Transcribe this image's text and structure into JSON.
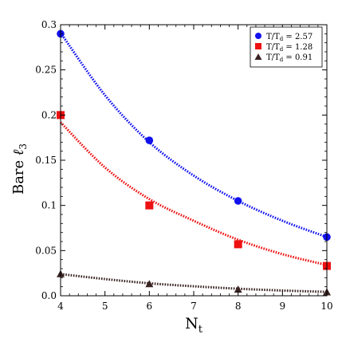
{
  "chart_data": {
    "type": "scatter",
    "title": "",
    "xlabel_main": "N",
    "xlabel_sub": "t",
    "ylabel_main": "Bare ",
    "ylabel_symbol": "ℓ",
    "ylabel_sub": "3",
    "xlim": [
      4,
      10
    ],
    "ylim": [
      0,
      0.3
    ],
    "x_ticks": [
      "4",
      "5",
      "6",
      "7",
      "8",
      "9",
      "10"
    ],
    "y_ticks": [
      "0.0",
      "0.05",
      "0.1",
      "0.15",
      "0.2",
      "0.25",
      "0.3"
    ],
    "legend_position": "top-right",
    "series": [
      {
        "label_main": "T/T",
        "label_sub": "d",
        "label_value": " = 2.57",
        "marker": "circle",
        "color": "#1111ee",
        "points": [
          [
            4,
            0.29
          ],
          [
            6,
            0.172
          ],
          [
            8,
            0.105
          ],
          [
            10,
            0.065
          ]
        ],
        "fit": [
          [
            4,
            0.291
          ],
          [
            5,
            0.222
          ],
          [
            6,
            0.17
          ],
          [
            7,
            0.133
          ],
          [
            8,
            0.105
          ],
          [
            9,
            0.083
          ],
          [
            10,
            0.065
          ]
        ]
      },
      {
        "label_main": "T/T",
        "label_sub": "d",
        "label_value": " = 1.28",
        "marker": "square",
        "color": "#ee1111",
        "points": [
          [
            4,
            0.2
          ],
          [
            6,
            0.1
          ],
          [
            8,
            0.057
          ],
          [
            10,
            0.033
          ]
        ],
        "fit": [
          [
            4,
            0.192
          ],
          [
            5,
            0.142
          ],
          [
            6,
            0.107
          ],
          [
            7,
            0.083
          ],
          [
            8,
            0.062
          ],
          [
            9,
            0.046
          ],
          [
            10,
            0.034
          ]
        ]
      },
      {
        "label_main": "T/T",
        "label_sub": "d",
        "label_value": " = 0.91",
        "marker": "triangle",
        "color": "#3a2323",
        "points": [
          [
            4,
            0.024
          ],
          [
            6,
            0.013
          ],
          [
            8,
            0.007
          ],
          [
            10,
            0.004
          ]
        ],
        "fit": [
          [
            4,
            0.024
          ],
          [
            5,
            0.0185
          ],
          [
            6,
            0.0138
          ],
          [
            7,
            0.0105
          ],
          [
            8,
            0.0078
          ],
          [
            9,
            0.0058
          ],
          [
            10,
            0.0043
          ]
        ]
      }
    ]
  }
}
